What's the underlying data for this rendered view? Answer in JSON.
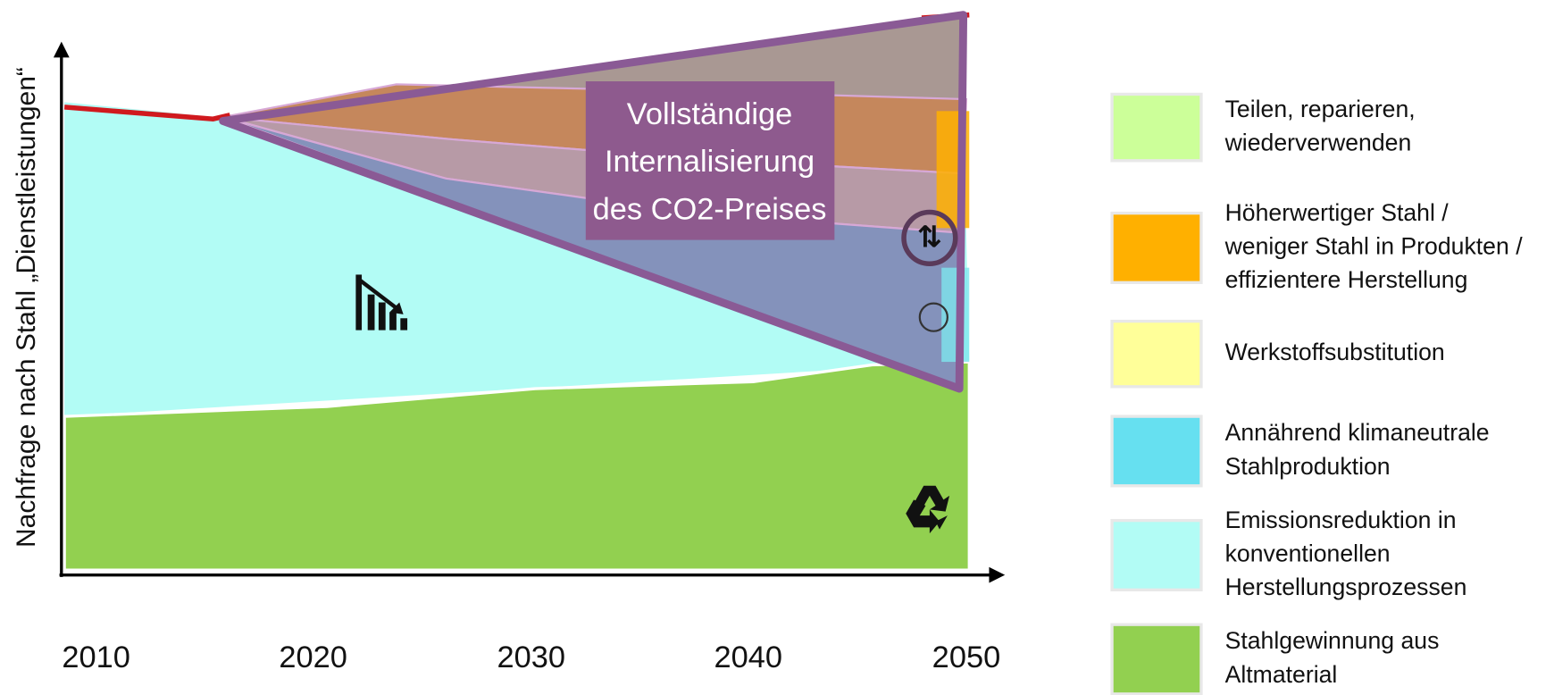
{
  "axis_label": "Nachfrage nach Stahl „Dienstleistungen“",
  "x_ticks": [
    "2010",
    "2020",
    "2030",
    "2040",
    "2050"
  ],
  "annotation": [
    "Vollständige",
    "Internalisierung",
    "des CO2-Preises"
  ],
  "legend": [
    {
      "lines": [
        "Teilen, reparieren,",
        "wiederverwenden"
      ]
    },
    {
      "lines": [
        "Höherwertiger Stahl /",
        "weniger Stahl in Produkten /",
        "effizientere Herstellung"
      ]
    },
    {
      "lines": [
        "Werkstoffsubstitution"
      ]
    },
    {
      "lines": [
        "Annährend klimaneutrale",
        "Stahlproduktion"
      ]
    },
    {
      "lines": [
        "Emissionsreduktion in",
        "konventionellen",
        "Herstellungsprozessen"
      ]
    },
    {
      "lines": [
        "Stahlgewinnung aus",
        "Altmaterial"
      ]
    }
  ]
}
